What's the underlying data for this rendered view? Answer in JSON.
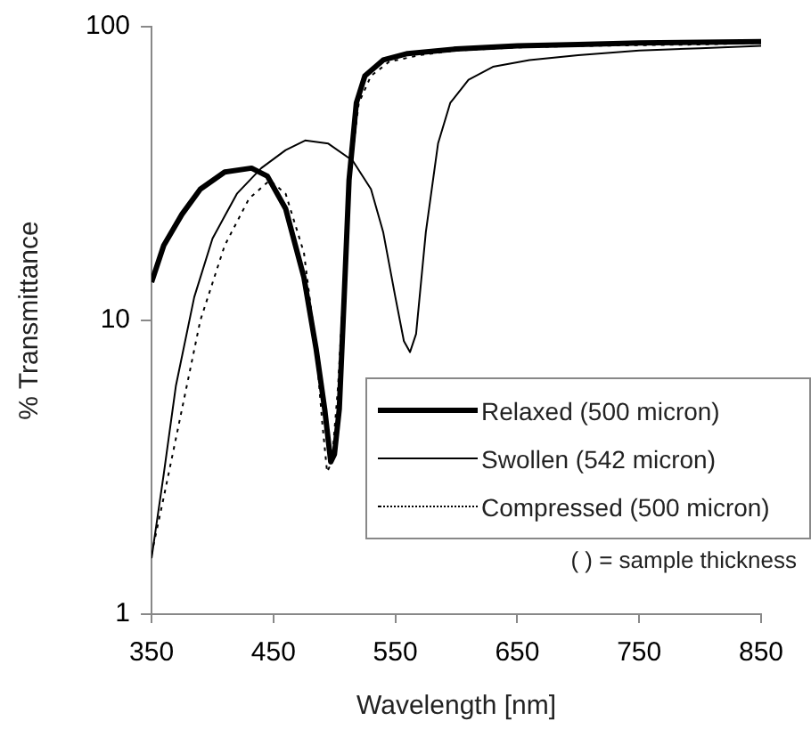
{
  "chart_data": {
    "type": "line",
    "xlabel": "Wavelength [nm]",
    "ylabel": "% Transmittance",
    "annotations": [
      "( ) = sample thickness"
    ],
    "xlim": [
      350,
      850
    ],
    "xticks": [
      350,
      450,
      550,
      650,
      750,
      850
    ],
    "ylim": [
      1,
      100
    ],
    "yticks": [
      1,
      10,
      100
    ],
    "log": "y",
    "grid": false,
    "legend": "bottom right",
    "marker": "none",
    "series": [
      {
        "name": "Relaxed (500 micron)",
        "color": "#000000",
        "line_style": "solid",
        "x": [
          350,
          360,
          375,
          390,
          410,
          432,
          445,
          460,
          475,
          485,
          492,
          497,
          500,
          504,
          508,
          512,
          518,
          525,
          540,
          560,
          600,
          650,
          700,
          750,
          800,
          850
        ],
        "values": [
          13.5,
          18,
          23,
          28,
          32,
          33,
          31,
          24,
          14,
          8,
          5,
          3.3,
          3.5,
          5,
          12,
          30,
          55,
          68,
          77,
          81,
          84,
          86,
          87,
          88,
          88.5,
          89
        ]
      },
      {
        "name": "Swollen (542 micron)",
        "color": "#000000",
        "line_style": "solid",
        "x": [
          350,
          360,
          370,
          385,
          400,
          420,
          440,
          460,
          476,
          495,
          515,
          530,
          540,
          550,
          557,
          562,
          567,
          575,
          585,
          595,
          610,
          630,
          660,
          700,
          750,
          800,
          850
        ],
        "values": [
          1.55,
          3,
          6,
          12,
          19,
          27,
          33,
          38,
          41,
          40,
          35,
          28,
          20,
          12,
          8.5,
          7.8,
          9,
          20,
          40,
          55,
          66,
          73,
          77,
          80,
          83,
          84.5,
          86
        ]
      },
      {
        "name": "Compressed (500 micron)",
        "color": "#000000",
        "line_style": "dotted",
        "x": [
          350,
          360,
          375,
          390,
          410,
          430,
          447,
          460,
          475,
          485,
          490,
          494,
          498,
          503,
          508,
          513,
          520,
          530,
          545,
          570,
          600,
          650,
          700,
          750,
          800,
          850
        ],
        "values": [
          1.6,
          2.5,
          5,
          10,
          18,
          26,
          30,
          27,
          17,
          8,
          4.5,
          3.05,
          3.3,
          6,
          14,
          32,
          55,
          68,
          76,
          80,
          83,
          85,
          86,
          86.5,
          87,
          88
        ]
      }
    ]
  }
}
